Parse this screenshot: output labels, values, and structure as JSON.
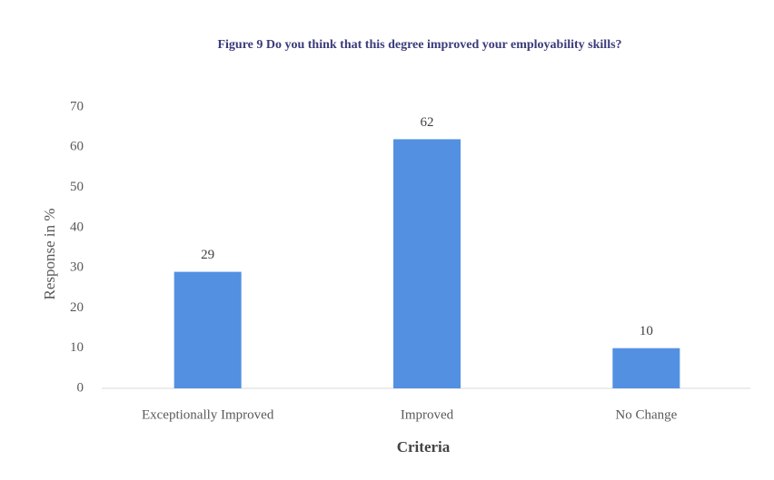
{
  "chart_data": {
    "type": "bar",
    "title": "Figure 9 Do you think that this degree improved your employability skills?",
    "x_label": "Criteria",
    "y_label": "Response in %",
    "categories": [
      "Exceptionally Improved",
      "Improved",
      "No Change"
    ],
    "values": [
      29,
      62,
      10
    ],
    "color": "#5390e2",
    "ylim": [
      0,
      70
    ],
    "yticks": [
      0,
      10,
      20,
      30,
      40,
      50,
      60,
      70
    ],
    "grid": false
  }
}
